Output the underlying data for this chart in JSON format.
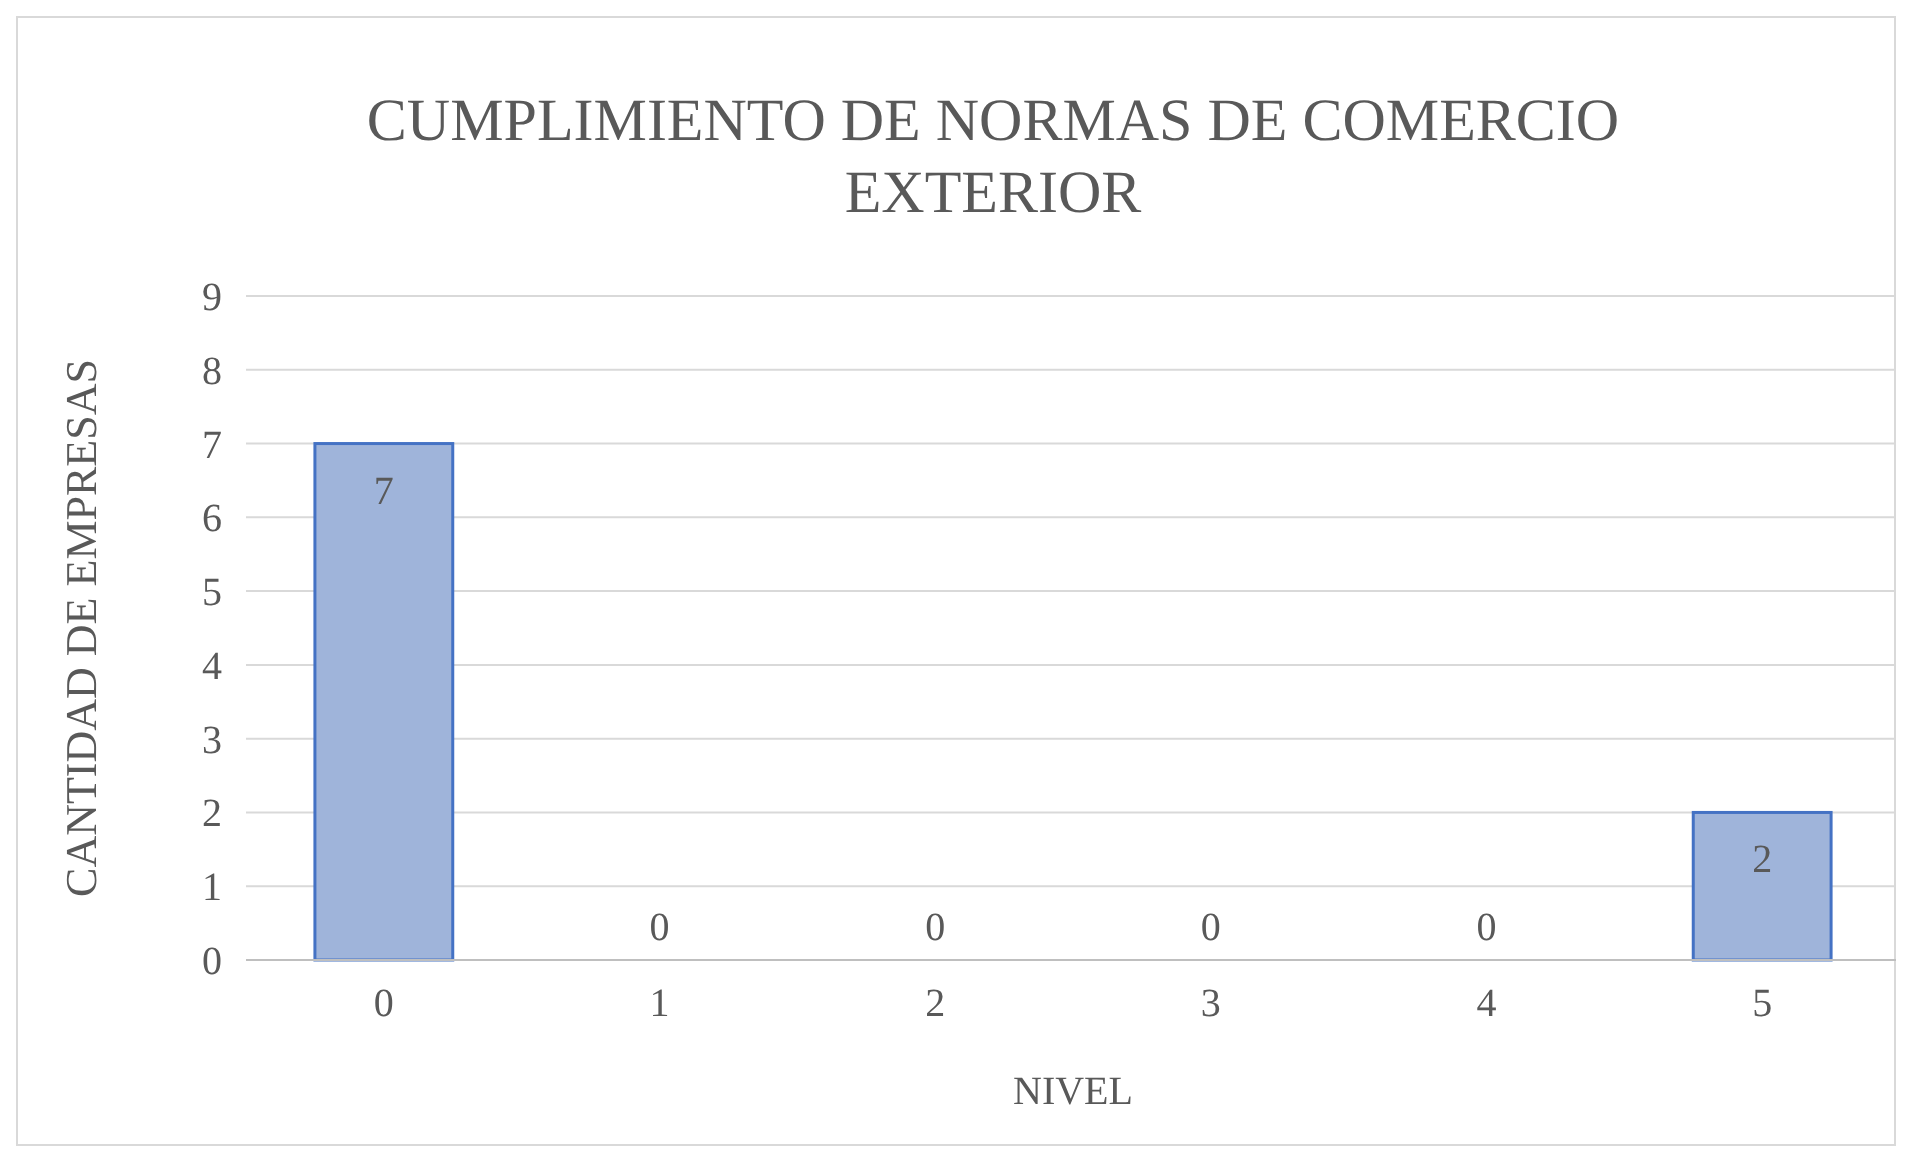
{
  "chart_data": {
    "type": "bar",
    "title": "CUMPLIMIENTO DE NORMAS DE COMERCIO EXTERIOR",
    "xlabel": "NIVEL",
    "ylabel": "CANTIDAD DE EMPRESAS",
    "categories": [
      "0",
      "1",
      "2",
      "3",
      "4",
      "5"
    ],
    "values": [
      7,
      0,
      0,
      0,
      0,
      2
    ],
    "color": "#9fb4da",
    "ylim": [
      0,
      9
    ],
    "yticks": [
      0,
      1,
      2,
      3,
      4,
      5,
      6,
      7,
      8,
      9
    ],
    "grid": "y",
    "data_labels": true
  }
}
